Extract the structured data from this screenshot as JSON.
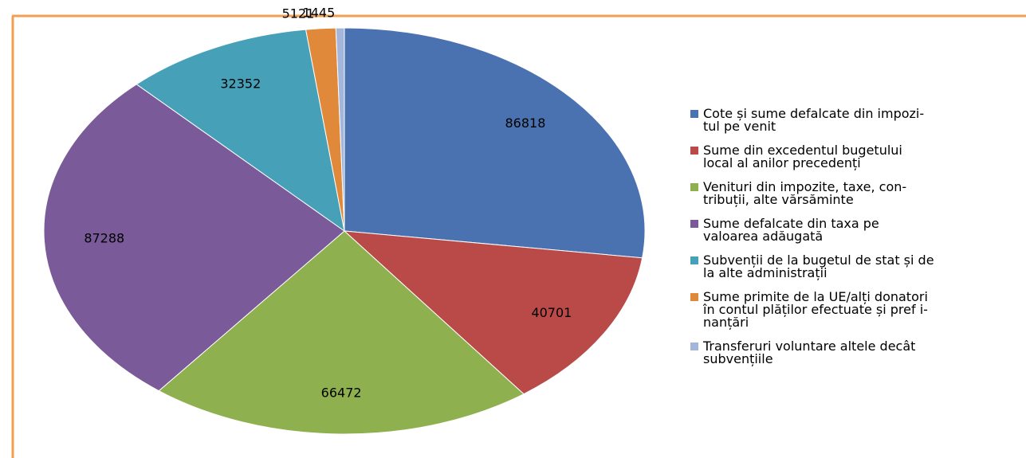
{
  "chart_data": {
    "type": "pie",
    "categories": [
      [
        "Cote și sume defalcate din impozi-",
        "tul pe venit"
      ],
      [
        "Sume din excedentul bugetului",
        "local al anilor precedenți"
      ],
      [
        "Venituri din impozite, taxe, con-",
        "tribuții, alte vărsăminte"
      ],
      [
        "Sume defalcate din taxa pe",
        "valoarea adăugată"
      ],
      [
        "Subvenții de la bugetul de stat și de",
        "la alte administrații"
      ],
      [
        "Sume primite de la UE/alți donatori",
        "în contul plăților efectuate și pref i-",
        "nanțări"
      ],
      [
        "Transferuri voluntare altele decât",
        "subvențiile"
      ]
    ],
    "values": [
      86818,
      40701,
      66472,
      87288,
      32352,
      5121,
      1445
    ],
    "colors": [
      "#4a72b0",
      "#b94a48",
      "#8fb04f",
      "#7a5a98",
      "#45a0b8",
      "#e0893a",
      "#a5b6dc"
    ],
    "legend": "right"
  }
}
